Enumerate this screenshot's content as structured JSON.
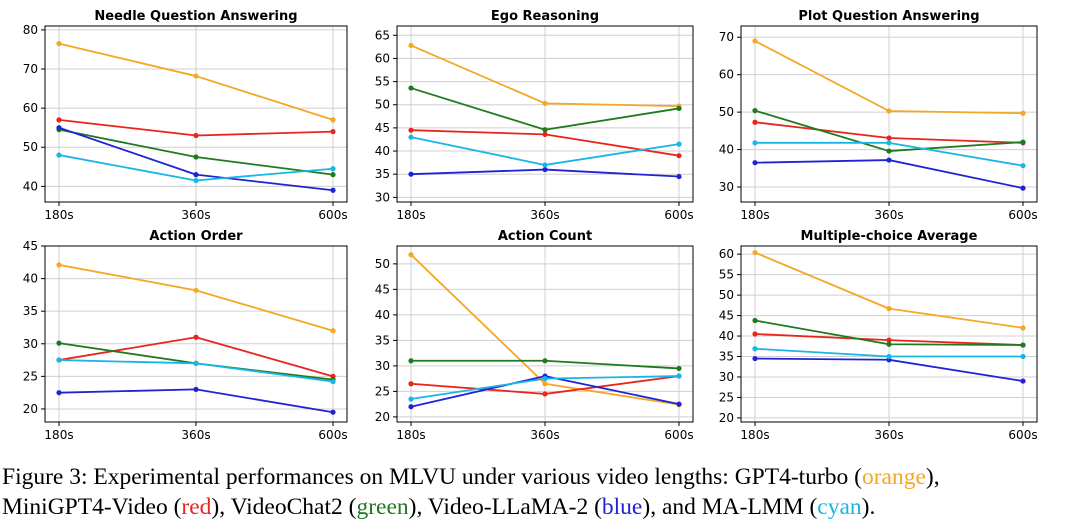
{
  "chart_data": [
    {
      "type": "line",
      "title": "Needle Question Answering",
      "x": [
        "180s",
        "360s",
        "600s"
      ],
      "ylim": [
        36,
        81
      ],
      "yticks": [
        40,
        50,
        60,
        70,
        80
      ],
      "grid": true,
      "series": [
        {
          "color": "#f5a623",
          "values": [
            76.5,
            68.2,
            57.0
          ]
        },
        {
          "color": "#e8251d",
          "values": [
            57.0,
            53.0,
            54.0
          ]
        },
        {
          "color": "#1e7a1e",
          "values": [
            54.5,
            47.5,
            43.0
          ]
        },
        {
          "color": "#1f23d6",
          "values": [
            55.0,
            43.0,
            39.0
          ]
        },
        {
          "color": "#18b6e6",
          "values": [
            48.0,
            41.5,
            44.5
          ]
        }
      ]
    },
    {
      "type": "line",
      "title": "Ego Reasoning",
      "x": [
        "180s",
        "360s",
        "600s"
      ],
      "ylim": [
        29,
        67
      ],
      "yticks": [
        30,
        35,
        40,
        45,
        50,
        55,
        60,
        65
      ],
      "grid": true,
      "series": [
        {
          "color": "#f5a623",
          "values": [
            62.8,
            50.3,
            49.7
          ]
        },
        {
          "color": "#e8251d",
          "values": [
            44.5,
            43.6,
            39.0
          ]
        },
        {
          "color": "#1e7a1e",
          "values": [
            53.6,
            44.6,
            49.2
          ]
        },
        {
          "color": "#1f23d6",
          "values": [
            35.0,
            36.0,
            34.5
          ]
        },
        {
          "color": "#18b6e6",
          "values": [
            43.0,
            37.0,
            41.5
          ]
        }
      ]
    },
    {
      "type": "line",
      "title": "Plot Question Answering",
      "x": [
        "180s",
        "360s",
        "600s"
      ],
      "ylim": [
        26,
        73
      ],
      "yticks": [
        30,
        40,
        50,
        60,
        70
      ],
      "grid": true,
      "series": [
        {
          "color": "#f5a623",
          "values": [
            69.0,
            50.3,
            49.7
          ]
        },
        {
          "color": "#e8251d",
          "values": [
            47.3,
            43.1,
            41.8
          ]
        },
        {
          "color": "#1e7a1e",
          "values": [
            50.4,
            39.6,
            42.0
          ]
        },
        {
          "color": "#1f23d6",
          "values": [
            36.5,
            37.2,
            29.7
          ]
        },
        {
          "color": "#18b6e6",
          "values": [
            41.8,
            41.8,
            35.7
          ]
        }
      ]
    },
    {
      "type": "line",
      "title": "Action Order",
      "x": [
        "180s",
        "360s",
        "600s"
      ],
      "ylim": [
        18,
        45
      ],
      "yticks": [
        20,
        25,
        30,
        35,
        40,
        45
      ],
      "grid": true,
      "series": [
        {
          "color": "#f5a623",
          "values": [
            42.1,
            38.2,
            32.0
          ]
        },
        {
          "color": "#e8251d",
          "values": [
            27.5,
            31.0,
            25.0
          ]
        },
        {
          "color": "#1e7a1e",
          "values": [
            30.1,
            27.0,
            24.5
          ]
        },
        {
          "color": "#1f23d6",
          "values": [
            22.5,
            23.0,
            19.5
          ]
        },
        {
          "color": "#18b6e6",
          "values": [
            27.5,
            27.0,
            24.2
          ]
        }
      ]
    },
    {
      "type": "line",
      "title": "Action Count",
      "x": [
        "180s",
        "360s",
        "600s"
      ],
      "ylim": [
        19,
        53.5
      ],
      "yticks": [
        20,
        25,
        30,
        35,
        40,
        45,
        50
      ],
      "grid": true,
      "series": [
        {
          "color": "#f5a623",
          "values": [
            51.8,
            26.5,
            22.4
          ]
        },
        {
          "color": "#e8251d",
          "values": [
            26.5,
            24.5,
            28.0
          ]
        },
        {
          "color": "#1e7a1e",
          "values": [
            31.0,
            31.0,
            29.5
          ]
        },
        {
          "color": "#1f23d6",
          "values": [
            22.0,
            28.0,
            22.5
          ]
        },
        {
          "color": "#18b6e6",
          "values": [
            23.5,
            27.5,
            28.0
          ]
        }
      ]
    },
    {
      "type": "line",
      "title": "Multiple-choice Average",
      "x": [
        "180s",
        "360s",
        "600s"
      ],
      "ylim": [
        19,
        62
      ],
      "yticks": [
        20,
        25,
        30,
        35,
        40,
        45,
        50,
        55,
        60
      ],
      "grid": true,
      "series": [
        {
          "color": "#f5a623",
          "values": [
            60.4,
            46.7,
            42.0
          ]
        },
        {
          "color": "#e8251d",
          "values": [
            40.5,
            39.0,
            37.8
          ]
        },
        {
          "color": "#1e7a1e",
          "values": [
            43.8,
            38.0,
            37.8
          ]
        },
        {
          "color": "#1f23d6",
          "values": [
            34.5,
            34.2,
            29.0
          ]
        },
        {
          "color": "#18b6e6",
          "values": [
            36.9,
            35.0,
            35.0
          ]
        }
      ]
    }
  ],
  "caption": {
    "prefix": "Figure 3: Experimental performances on MLVU under various video lengths: GPT4-turbo (",
    "orange": "orange",
    "after_orange": "),",
    "line2_start": "MiniGPT4-Video (",
    "red": "red",
    "after_red": "), VideoChat2 (",
    "green": "green",
    "after_green": "), Video-LLaMA-2 (",
    "blue": "blue",
    "after_blue": "), and MA-LMM (",
    "cyan": "cyan",
    "end": ")."
  }
}
